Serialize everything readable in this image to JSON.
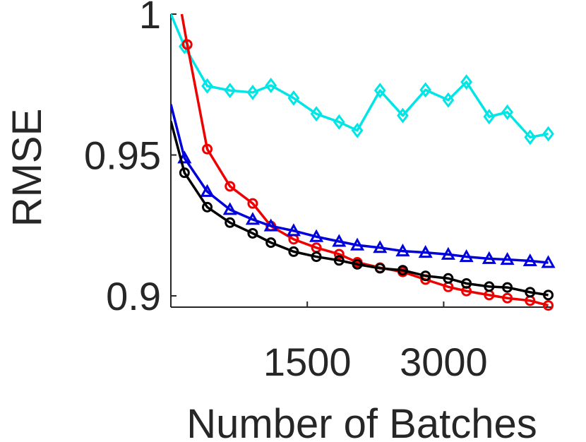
{
  "chart_data": {
    "type": "line",
    "xlabel": "Number of Batches",
    "ylabel": "RMSE",
    "xlim": [
      0,
      4200
    ],
    "ylim": [
      0.896,
      1.0
    ],
    "xticks": [
      1500,
      3000
    ],
    "xtick_labels": [
      "1500",
      "3000"
    ],
    "yticks": [
      0.9,
      0.95,
      1.0
    ],
    "ytick_labels": [
      "0.9",
      "0.95",
      "1"
    ],
    "grid": false,
    "legend": "none",
    "series": [
      {
        "color": "#00e5e5",
        "marker": "diamond",
        "x": [
          0,
          150,
          400,
          650,
          900,
          1100,
          1350,
          1600,
          1850,
          2050,
          2300,
          2550,
          2800,
          3050,
          3250,
          3500,
          3700,
          3950,
          4150
        ],
        "y": [
          1.0,
          0.9885,
          0.9745,
          0.9729,
          0.9722,
          0.9747,
          0.9702,
          0.9646,
          0.9617,
          0.9587,
          0.9729,
          0.964,
          0.9731,
          0.9695,
          0.9759,
          0.9636,
          0.9652,
          0.9563,
          0.9575
        ]
      },
      {
        "color": "#ee0000",
        "marker": "circle",
        "x": [
          120,
          180,
          400,
          650,
          900,
          1100,
          1350,
          1600,
          1850,
          2050,
          2300,
          2550,
          2800,
          3050,
          3250,
          3500,
          3700,
          3950,
          4150
        ],
        "y": [
          1.0,
          0.9892,
          0.9521,
          0.9389,
          0.9328,
          0.9248,
          0.9201,
          0.9171,
          0.9148,
          0.9119,
          0.91,
          0.9085,
          0.9058,
          0.9032,
          0.9017,
          0.9003,
          0.8992,
          0.8983,
          0.8966
        ]
      },
      {
        "color": "#0000dd",
        "marker": "triangle",
        "x": [
          0,
          150,
          400,
          650,
          900,
          1100,
          1350,
          1600,
          1850,
          2050,
          2300,
          2550,
          2800,
          3050,
          3250,
          3500,
          3700,
          3950,
          4150
        ],
        "y": [
          0.968,
          0.9489,
          0.937,
          0.9306,
          0.9271,
          0.9248,
          0.9231,
          0.921,
          0.9193,
          0.918,
          0.9171,
          0.9159,
          0.9154,
          0.9147,
          0.9139,
          0.9132,
          0.9129,
          0.9124,
          0.9118
        ]
      },
      {
        "color": "#000000",
        "marker": "circle",
        "x": [
          0,
          150,
          400,
          650,
          900,
          1100,
          1350,
          1600,
          1850,
          2050,
          2300,
          2550,
          2800,
          3050,
          3250,
          3500,
          3700,
          3950,
          4150
        ],
        "y": [
          0.962,
          0.9437,
          0.9315,
          0.926,
          0.9222,
          0.9189,
          0.9157,
          0.9139,
          0.9126,
          0.9112,
          0.9098,
          0.9091,
          0.9071,
          0.9062,
          0.9044,
          0.9033,
          0.903,
          0.9013,
          0.9003
        ]
      }
    ]
  }
}
